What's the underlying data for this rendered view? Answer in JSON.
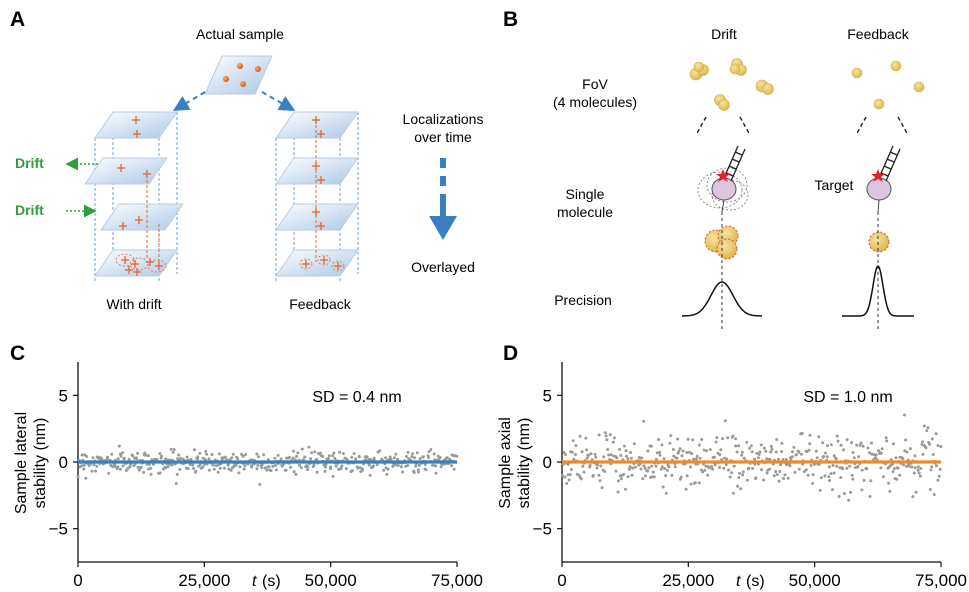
{
  "panels": {
    "A": {
      "letter": "A",
      "actual_sample": "Actual sample",
      "drift_label_1": "Drift",
      "drift_label_2": "Drift",
      "with_drift": "With drift",
      "feedback": "Feedback",
      "localizations_line1": "Localizations",
      "localizations_line2": "over time",
      "overlayed": "Overlayed"
    },
    "B": {
      "letter": "B",
      "col_drift": "Drift",
      "col_feedback": "Feedback",
      "fov_line1": "FoV",
      "fov_line2": "(4 molecules)",
      "single_line1": "Single",
      "single_line2": "molecule",
      "target": "Target",
      "precision": "Precision"
    },
    "C": {
      "letter": "C",
      "ylabel_line1": "Sample lateral",
      "ylabel_line2": "stability (nm)",
      "sd": "SD = 0.4 nm",
      "xaxis_var": "t",
      "xaxis_unit": "(s)"
    },
    "D": {
      "letter": "D",
      "ylabel_line1": "Sample axial",
      "ylabel_line2": "stability (nm)",
      "sd": "SD = 1.0 nm",
      "xaxis_var": "t",
      "xaxis_unit": "(s)"
    }
  },
  "colors": {
    "accent_blue": "#3a7fbf",
    "orange": "#f0892c",
    "green": "#2f9e3c",
    "scatter": "#9a9a9a",
    "molecule": "#e8c85a"
  },
  "chart_data": [
    {
      "type": "scatter",
      "panel": "C",
      "xlim": [
        0,
        75000
      ],
      "ylim": [
        -7.5,
        7.5
      ],
      "xticks": [
        0,
        25000,
        50000,
        75000
      ],
      "xtick_labels": [
        "0",
        "25,000",
        "50,000",
        "75,000"
      ],
      "yticks": [
        -5,
        0,
        5
      ],
      "ytick_labels": [
        "−5",
        "0",
        "5"
      ],
      "sd_nm": 0.4,
      "mean_nm": 0,
      "n_points": 500,
      "line_color": "#3a7fbf"
    },
    {
      "type": "scatter",
      "panel": "D",
      "xlim": [
        0,
        75000
      ],
      "ylim": [
        -7.5,
        7.5
      ],
      "xticks": [
        0,
        25000,
        50000,
        75000
      ],
      "xtick_labels": [
        "0",
        "25,000",
        "50,000",
        "75,000"
      ],
      "yticks": [
        -5,
        0,
        5
      ],
      "ytick_labels": [
        "−5",
        "0",
        "5"
      ],
      "sd_nm": 1.0,
      "mean_nm": 0,
      "n_points": 500,
      "line_color": "#f0892c"
    }
  ]
}
